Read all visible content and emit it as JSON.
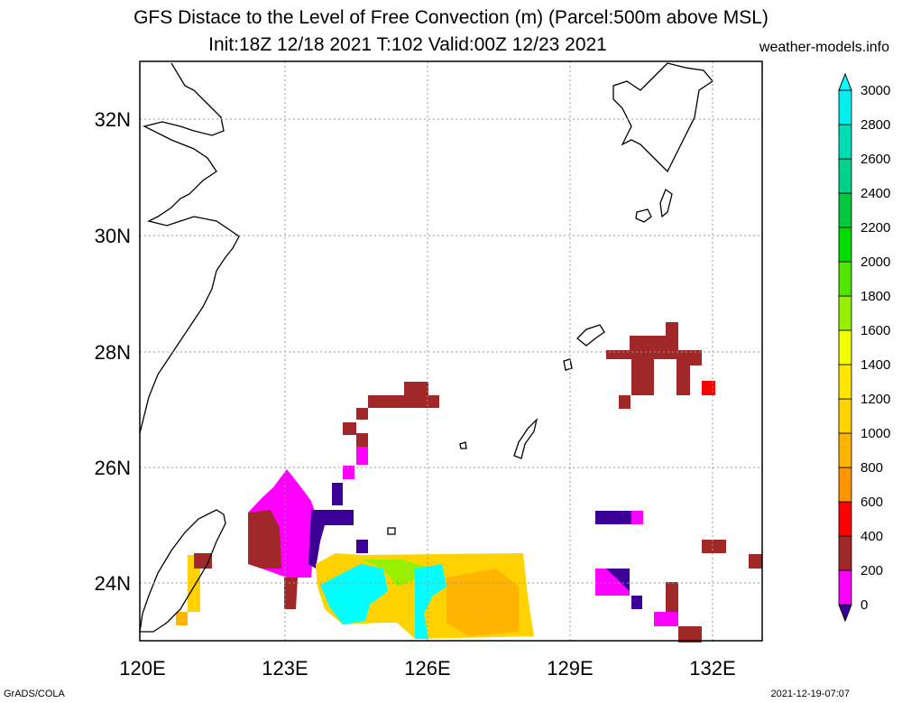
{
  "title_line1": "GFS Distace to the Level of Free Convection (m) (Parcel:500m above MSL)",
  "title_line2": "Init:18Z 12/18 2021 T:102 Valid:00Z 12/23 2021",
  "site": "weather-models.info",
  "footer_left": "GrADS/COLA",
  "footer_right": "2021-12-19-07:07",
  "lon_ticks": [
    "120E",
    "123E",
    "126E",
    "129E",
    "132E"
  ],
  "lat_ticks": [
    "24N",
    "26N",
    "28N",
    "30N",
    "32N"
  ],
  "colorbar": {
    "labels": [
      "0",
      "200",
      "400",
      "600",
      "800",
      "1000",
      "1200",
      "1400",
      "1600",
      "1800",
      "2000",
      "2200",
      "2400",
      "2600",
      "2800",
      "3000"
    ],
    "colors": [
      "#3c0096",
      "#ff00ff",
      "#a02828",
      "#ff0000",
      "#ff9600",
      "#ffb400",
      "#ffd200",
      "#ffe600",
      "#f0ff00",
      "#96f000",
      "#50e600",
      "#00dc00",
      "#00c83c",
      "#00d28c",
      "#00dcb4",
      "#00f0f0",
      "#00ffff"
    ]
  },
  "map": {
    "lon_range": [
      120,
      133
    ],
    "lat_range": [
      23,
      33
    ]
  }
}
